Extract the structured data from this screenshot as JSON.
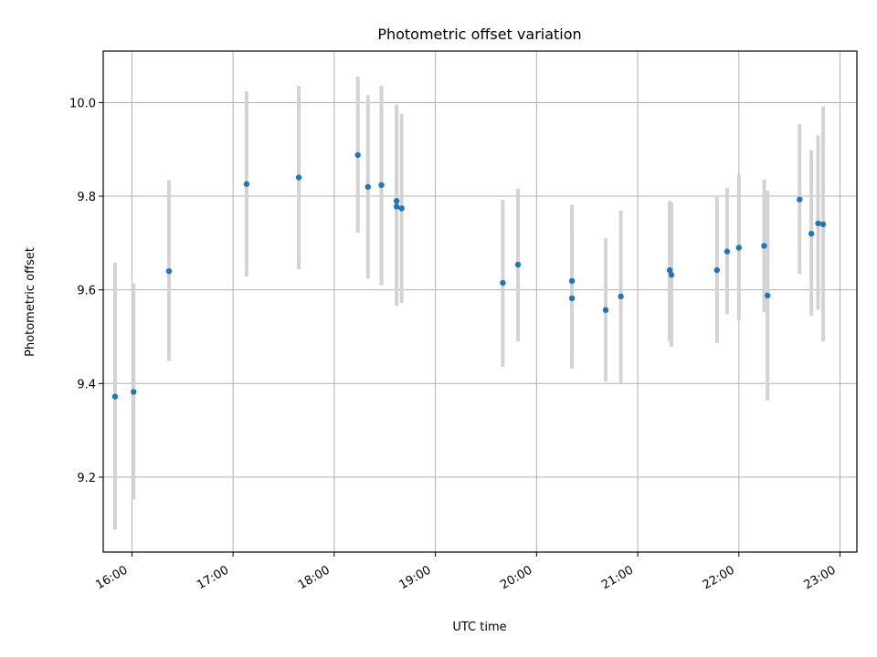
{
  "chart_data": {
    "type": "scatter",
    "title": "Photometric offset variation",
    "xlabel": "UTC time",
    "ylabel": "Photometric offset",
    "xlim": [
      "15:43",
      "23:10"
    ],
    "ylim": [
      9.04,
      10.11
    ],
    "x_ticks": [
      "16:00",
      "17:00",
      "18:00",
      "19:00",
      "20:00",
      "21:00",
      "22:00",
      "23:00"
    ],
    "y_ticks": [
      "9.2",
      "9.4",
      "9.6",
      "9.8",
      "10.0"
    ],
    "grid": true,
    "legend": "none",
    "colors": {
      "points": "#1f77b4",
      "error_bars": "#d3d3d3",
      "grid": "#b0b0b0"
    },
    "points": [
      {
        "time": "15:50",
        "y": 9.372,
        "yerr_low": 9.088,
        "yerr_high": 9.658
      },
      {
        "time": "16:01",
        "y": 9.382,
        "yerr_low": 9.152,
        "yerr_high": 9.614
      },
      {
        "time": "16:22",
        "y": 9.64,
        "yerr_low": 9.448,
        "yerr_high": 9.834
      },
      {
        "time": "17:08",
        "y": 9.826,
        "yerr_low": 9.628,
        "yerr_high": 10.024
      },
      {
        "time": "17:39",
        "y": 9.84,
        "yerr_low": 9.644,
        "yerr_high": 10.036
      },
      {
        "time": "18:14",
        "y": 9.888,
        "yerr_low": 9.722,
        "yerr_high": 10.056
      },
      {
        "time": "18:20",
        "y": 9.82,
        "yerr_low": 9.624,
        "yerr_high": 10.016
      },
      {
        "time": "18:28",
        "y": 9.824,
        "yerr_low": 9.61,
        "yerr_high": 10.036
      },
      {
        "time": "18:37",
        "y": 9.79,
        "yerr_low": 9.58,
        "yerr_high": 9.996
      },
      {
        "time": "18:37",
        "y": 9.778,
        "yerr_low": 9.566,
        "yerr_high": 9.99
      },
      {
        "time": "18:40",
        "y": 9.774,
        "yerr_low": 9.572,
        "yerr_high": 9.976
      },
      {
        "time": "19:40",
        "y": 9.615,
        "yerr_low": 9.436,
        "yerr_high": 9.792
      },
      {
        "time": "19:49",
        "y": 9.654,
        "yerr_low": 9.49,
        "yerr_high": 9.816
      },
      {
        "time": "20:21",
        "y": 9.619,
        "yerr_low": 9.454,
        "yerr_high": 9.782
      },
      {
        "time": "20:21",
        "y": 9.582,
        "yerr_low": 9.432,
        "yerr_high": 9.734
      },
      {
        "time": "20:41",
        "y": 9.557,
        "yerr_low": 9.404,
        "yerr_high": 9.71
      },
      {
        "time": "20:50",
        "y": 9.586,
        "yerr_low": 9.4,
        "yerr_high": 9.77
      },
      {
        "time": "21:19",
        "y": 9.642,
        "yerr_low": 9.49,
        "yerr_high": 9.79
      },
      {
        "time": "21:20",
        "y": 9.632,
        "yerr_low": 9.478,
        "yerr_high": 9.786
      },
      {
        "time": "21:47",
        "y": 9.642,
        "yerr_low": 9.486,
        "yerr_high": 9.798
      },
      {
        "time": "21:53",
        "y": 9.682,
        "yerr_low": 9.548,
        "yerr_high": 9.818
      },
      {
        "time": "22:00",
        "y": 9.69,
        "yerr_low": 9.536,
        "yerr_high": 9.846
      },
      {
        "time": "22:15",
        "y": 9.694,
        "yerr_low": 9.552,
        "yerr_high": 9.836
      },
      {
        "time": "22:17",
        "y": 9.588,
        "yerr_low": 9.364,
        "yerr_high": 9.812
      },
      {
        "time": "22:36",
        "y": 9.793,
        "yerr_low": 9.634,
        "yerr_high": 9.954
      },
      {
        "time": "22:43",
        "y": 9.72,
        "yerr_low": 9.544,
        "yerr_high": 9.898
      },
      {
        "time": "22:47",
        "y": 9.742,
        "yerr_low": 9.558,
        "yerr_high": 9.93
      },
      {
        "time": "22:50",
        "y": 9.74,
        "yerr_low": 9.49,
        "yerr_high": 9.992
      }
    ]
  }
}
